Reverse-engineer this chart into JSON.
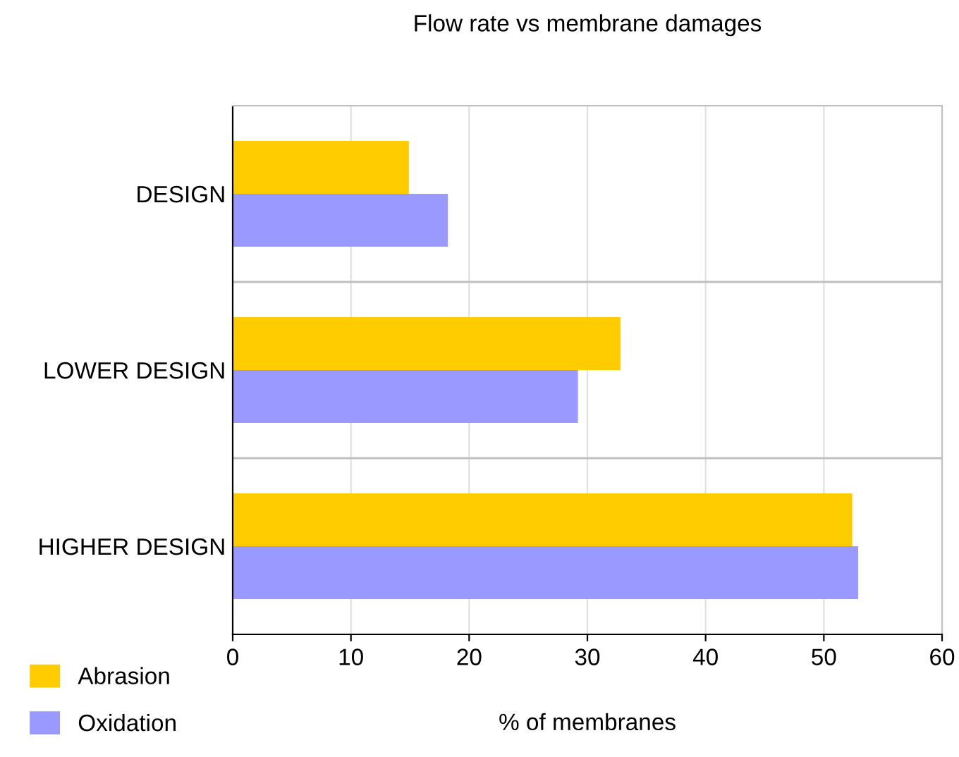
{
  "chart_data": {
    "type": "bar",
    "orientation": "horizontal",
    "title": "Flow rate vs membrane damages",
    "xlabel": "% of membranes",
    "categories": [
      "DESIGN",
      "LOWER DESIGN",
      "HIGHER DESIGN"
    ],
    "series": [
      {
        "name": "Abrasion",
        "color": "#ffcc00",
        "values": [
          14.9,
          32.8,
          52.4
        ]
      },
      {
        "name": "Oxidation",
        "color": "#9999ff",
        "values": [
          18.2,
          29.2,
          52.9
        ]
      }
    ],
    "xlim": [
      0,
      60
    ],
    "xticks": [
      0,
      10,
      20,
      30,
      40,
      50,
      60
    ],
    "grid": "x",
    "legend": "bottom left"
  }
}
